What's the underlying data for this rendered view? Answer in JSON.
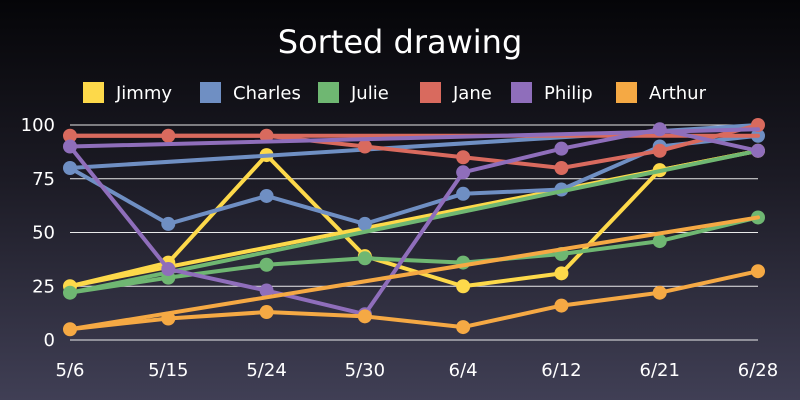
{
  "chart_data": {
    "type": "line",
    "title": "Sorted drawing",
    "xlabel": "",
    "ylabel": "",
    "categories": [
      "5/6",
      "5/15",
      "5/24",
      "5/30",
      "6/4",
      "6/12",
      "6/21",
      "6/28"
    ],
    "ylim": [
      0,
      100
    ],
    "yticks": [
      0,
      25,
      50,
      75,
      100
    ],
    "grid": "horizontal",
    "legend_position": "top",
    "series": [
      {
        "name": "Jimmy",
        "color": "#fdd94a",
        "values": [
          25,
          36,
          86,
          39,
          25,
          31,
          79,
          88
        ],
        "trend": [
          25,
          88
        ]
      },
      {
        "name": "Charles",
        "color": "#6f8fc3",
        "values": [
          80,
          54,
          67,
          54,
          68,
          70,
          90,
          95
        ],
        "trend": [
          80,
          100
        ]
      },
      {
        "name": "Julie",
        "color": "#6fb772",
        "values": [
          22,
          29,
          35,
          38,
          36,
          40,
          46,
          57
        ],
        "trend": [
          22,
          88
        ]
      },
      {
        "name": "Jane",
        "color": "#d96a5e",
        "values": [
          95,
          95,
          95,
          90,
          85,
          80,
          88,
          100
        ],
        "trend": [
          95,
          95
        ]
      },
      {
        "name": "Philip",
        "color": "#8f6ebb",
        "values": [
          90,
          33,
          23,
          12,
          78,
          89,
          98,
          88
        ],
        "trend": [
          90,
          98
        ]
      },
      {
        "name": "Arthur",
        "color": "#f5a944",
        "values": [
          5,
          10,
          13,
          11,
          6,
          16,
          22,
          32
        ],
        "trend": [
          5,
          57
        ]
      }
    ]
  }
}
